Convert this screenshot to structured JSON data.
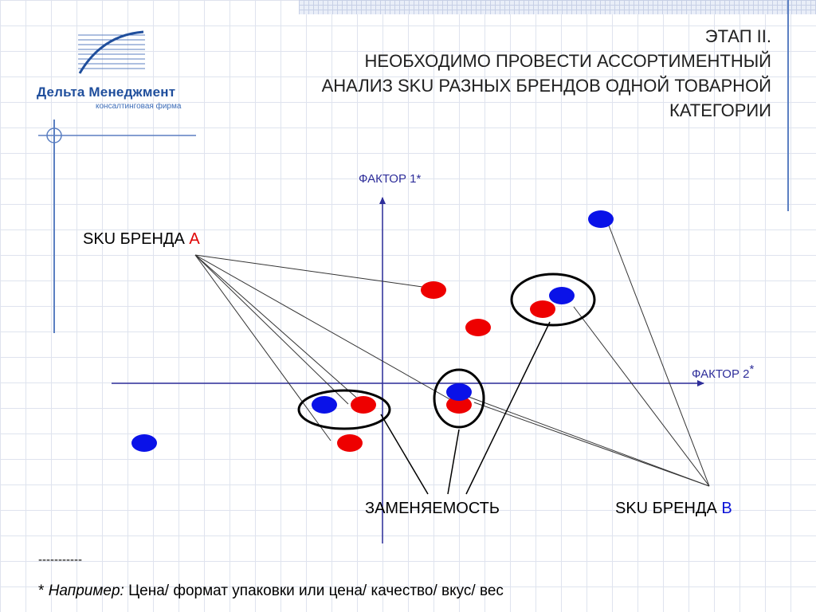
{
  "brand": {
    "name": "Дельта Менеджмент",
    "tagline": "консалтинговая фирма",
    "colors": {
      "primary": "#1f4e9c",
      "accent": "#3d6db8"
    }
  },
  "title": {
    "lines": [
      "ЭТАП II.",
      "НЕОБХОДИМО ПРОВЕСТИ АССОРТИМЕНТНЫЙ",
      "АНАЛИЗ SKU РАЗНЫХ БРЕНДОВ ОДНОЙ ТОВАРНОЙ",
      "КАТЕГОРИИ"
    ]
  },
  "axes": {
    "y_label": "ФАКТОР 1*",
    "x_label": "ФАКТОР 2",
    "x_label_mark": "*"
  },
  "groups": {
    "a": {
      "prefix": "SKU БРЕНДА",
      "letter": "А",
      "color": "#e00000"
    },
    "b": {
      "prefix": "SKU БРЕНДА",
      "letter": "В",
      "color": "#0a12d8"
    },
    "substitutability": "ЗАМЕНЯЕМОСТЬ"
  },
  "footer": {
    "dashes": "-----------",
    "star": "*",
    "example_prefix": "Например:",
    "example_text": "Цена/ формат упаковки или цена/ качество/ вкус/ вес"
  }
}
